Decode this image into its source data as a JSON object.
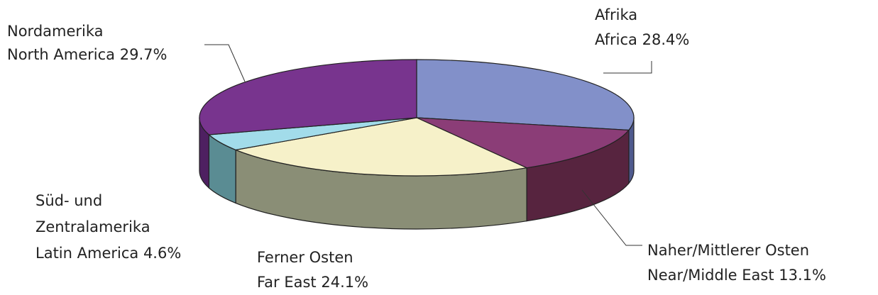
{
  "chart_data": {
    "type": "pie3d",
    "categories": [
      "Afrika",
      "Naher/Mittlerer Osten",
      "Ferner Osten",
      "Süd- und Zentralamerika",
      "Nordamerika"
    ],
    "categories_en": [
      "Africa",
      "Near/Middle East",
      "Far East",
      "Latin America",
      "North America"
    ],
    "values": [
      28.4,
      13.1,
      24.1,
      4.6,
      29.7
    ],
    "value_labels": [
      "28.4%",
      "13.1%",
      "24.1%",
      "4.6%",
      "29.7%"
    ],
    "colors": [
      "#8290c9",
      "#8b3d77",
      "#f6f1c9",
      "#a2dcea",
      "#78348e"
    ],
    "side_colors": [
      "#4f5a8e",
      "#57243f",
      "#8a8e76",
      "#5a8c93",
      "#4e2061"
    ]
  }
}
